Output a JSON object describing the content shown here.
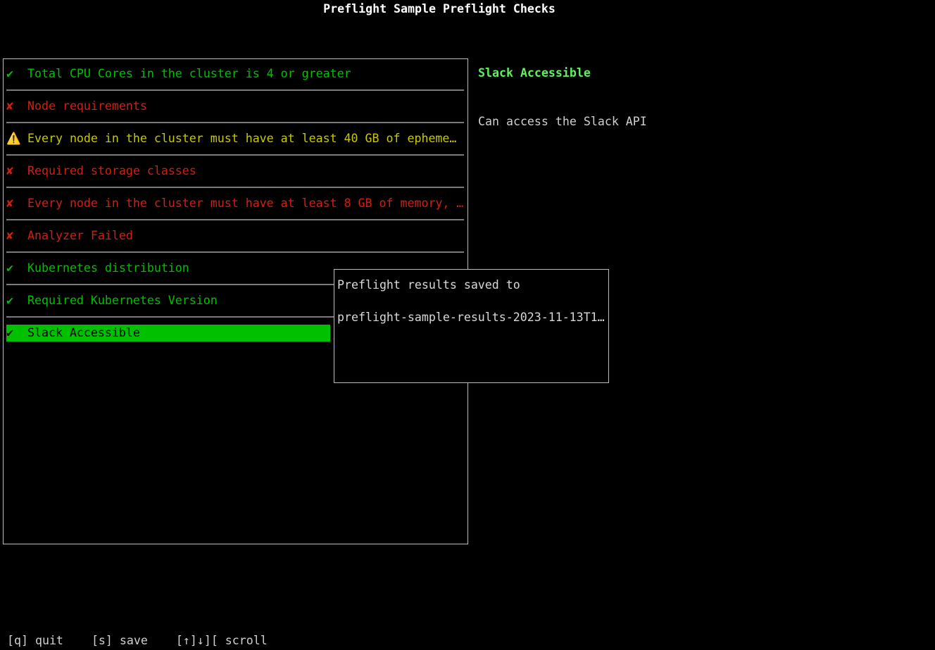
{
  "title": "Preflight Sample Preflight Checks",
  "colors": {
    "pass": "#00c000",
    "fail": "#d02010",
    "warn": "#c8c800",
    "selected_bg": "#00c000"
  },
  "checks": [
    {
      "status": "pass",
      "icon": "✔",
      "label": "Total CPU Cores in the cluster is 4 or greater"
    },
    {
      "status": "fail",
      "icon": "✘",
      "label": "Node requirements"
    },
    {
      "status": "warn",
      "icon": "⚠️",
      "label": "Every node in the cluster must have at least 40 GB of epheme…"
    },
    {
      "status": "fail",
      "icon": "✘",
      "label": "Required storage classes"
    },
    {
      "status": "fail",
      "icon": "✘",
      "label": "Every node in the cluster must have at least 8 GB of memory, …"
    },
    {
      "status": "fail",
      "icon": "✘",
      "label": "Analyzer Failed"
    },
    {
      "status": "pass",
      "icon": "✔",
      "label": "Kubernetes distribution"
    },
    {
      "status": "pass",
      "icon": "✔",
      "label": "Required Kubernetes Version"
    },
    {
      "status": "pass",
      "icon": "✔",
      "label": "Slack Accessible",
      "selected": true
    }
  ],
  "detail": {
    "title": "Slack Accessible",
    "message": "Can access the Slack API"
  },
  "popup": {
    "line1": "Preflight results saved to",
    "line2": "preflight-sample-results-2023-11-13T1…"
  },
  "footer": {
    "quit": "[q] quit",
    "save": "[s] save",
    "scroll": "[↑]↓][ scroll"
  }
}
